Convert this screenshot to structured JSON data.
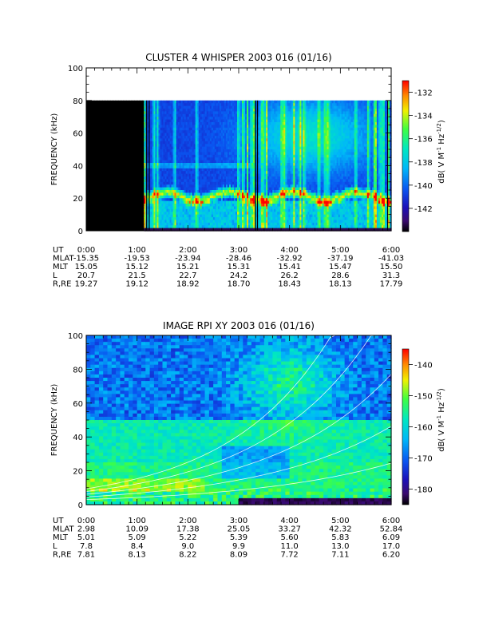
{
  "chart_data": [
    {
      "type": "heatmap",
      "title": "CLUSTER 4 WHISPER 2003 016 (01/16)",
      "ylabel": "FREQUENCY (kHz)",
      "ylim": [
        0,
        100
      ],
      "y_ticks": [
        "0",
        "20",
        "40",
        "60",
        "80",
        "100"
      ],
      "x_ticks": [
        "0:00",
        "1:00",
        "2:00",
        "3:00",
        "4:00",
        "5:00",
        "6:00"
      ],
      "x_range_hours": [
        0,
        6
      ],
      "data_frequency_max_khz": 80,
      "no_data_interval_hours": [
        0.0,
        1.15
      ],
      "colorbar": {
        "label_parts": [
          "dB( V M",
          "-1",
          " Hz",
          "-1/2",
          ")"
        ],
        "range": [
          -144,
          -131
        ],
        "ticks": [
          "-132",
          "-134",
          "-136",
          "-138",
          "-140",
          "-142"
        ]
      },
      "ephemeris_rows": [
        {
          "label": "UT",
          "values": [
            "0:00",
            "1:00",
            "2:00",
            "3:00",
            "4:00",
            "5:00",
            "6:00"
          ]
        },
        {
          "label": "MLAT",
          "values": [
            "-15.35",
            "-19.53",
            "-23.94",
            "-28.46",
            "-32.92",
            "-37.19",
            "-41.03"
          ]
        },
        {
          "label": "MLT",
          "values": [
            "15.05",
            "15.12",
            "15.21",
            "15.31",
            "15.41",
            "15.47",
            "15.50"
          ]
        },
        {
          "label": "L",
          "values": [
            "20.7",
            "21.5",
            "22.7",
            "24.2",
            "26.2",
            "28.6",
            "31.3"
          ]
        },
        {
          "label": "R,RE",
          "values": [
            "19.27",
            "19.12",
            "18.92",
            "18.70",
            "18.43",
            "18.13",
            "17.79"
          ]
        }
      ]
    },
    {
      "type": "heatmap",
      "title": "IMAGE RPI XY 2003 016 (01/16)",
      "ylabel": "FREQUENCY (kHz)",
      "ylim": [
        0,
        100
      ],
      "y_ticks": [
        "0",
        "20",
        "40",
        "60",
        "80",
        "100"
      ],
      "x_ticks": [
        "0:00",
        "1:00",
        "2:00",
        "3:00",
        "4:00",
        "5:00",
        "6:00"
      ],
      "x_range_hours": [
        0,
        6
      ],
      "colorbar": {
        "label_parts": [
          "dB( V M",
          "-1",
          " Hz",
          "-1/2",
          ")"
        ],
        "range": [
          -185,
          -135
        ],
        "ticks": [
          "-140",
          "-150",
          "-160",
          "-170",
          "-180"
        ]
      },
      "ephemeris_rows": [
        {
          "label": "UT",
          "values": [
            "0:00",
            "1:00",
            "2:00",
            "3:00",
            "4:00",
            "5:00",
            "6:00"
          ]
        },
        {
          "label": "MLAT",
          "values": [
            "2.98",
            "10.09",
            "17.38",
            "25.05",
            "33.27",
            "42.32",
            "52.84"
          ]
        },
        {
          "label": "MLT",
          "values": [
            "5.01",
            "5.09",
            "5.22",
            "5.39",
            "5.60",
            "5.83",
            "6.09"
          ]
        },
        {
          "label": "L",
          "values": [
            "7.8",
            "8.4",
            "9.0",
            "9.9",
            "11.0",
            "13.0",
            "17.0"
          ]
        },
        {
          "label": "R,RE",
          "values": [
            "7.81",
            "8.13",
            "8.22",
            "8.09",
            "7.72",
            "7.11",
            "6.20"
          ]
        }
      ]
    }
  ]
}
